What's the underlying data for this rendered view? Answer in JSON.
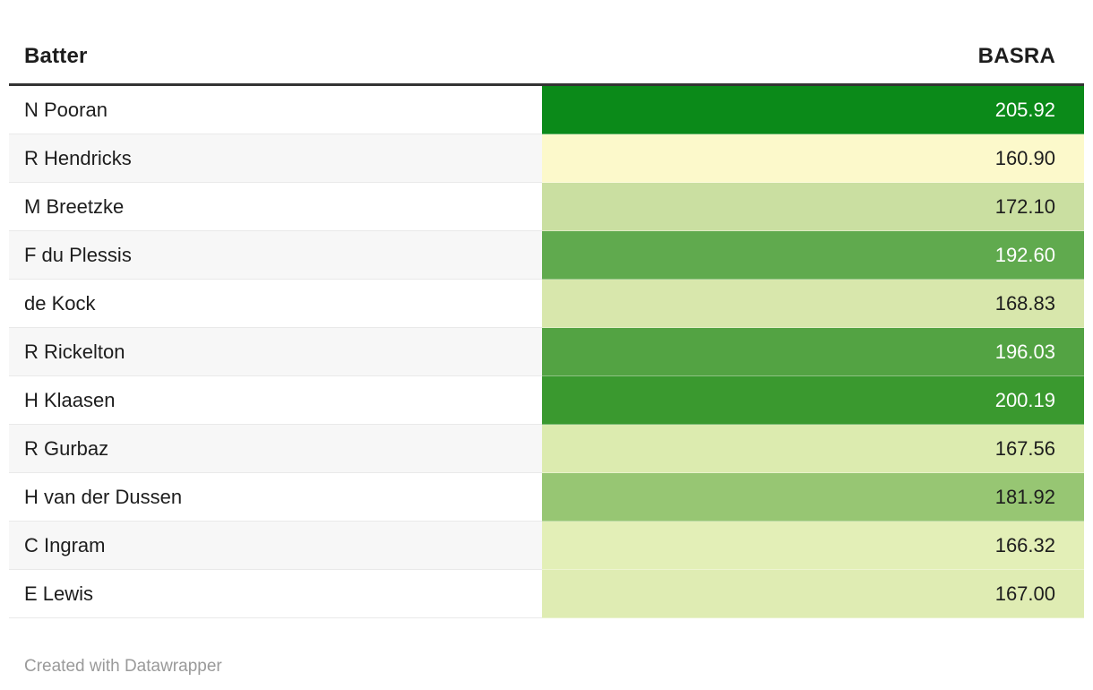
{
  "table": {
    "header": {
      "batter_label": "Batter",
      "basra_label": "BASRA"
    },
    "rows": [
      {
        "batter": "N Pooran",
        "basra": "205.92",
        "cell_color": "#0b8a19",
        "text_color": "#ffffff"
      },
      {
        "batter": "R Hendricks",
        "basra": "160.90",
        "cell_color": "#fcf9cb",
        "text_color": "#1d1d1d"
      },
      {
        "batter": "M Breetzke",
        "basra": "172.10",
        "cell_color": "#cadfa1",
        "text_color": "#1d1d1d"
      },
      {
        "batter": "F du Plessis",
        "basra": "192.60",
        "cell_color": "#60aa4e",
        "text_color": "#ffffff"
      },
      {
        "batter": "de Kock",
        "basra": "168.83",
        "cell_color": "#d8e7ac",
        "text_color": "#1d1d1d"
      },
      {
        "batter": "R Rickelton",
        "basra": "196.03",
        "cell_color": "#53a343",
        "text_color": "#ffffff"
      },
      {
        "batter": "H Klaasen",
        "basra": "200.19",
        "cell_color": "#3a992f",
        "text_color": "#ffffff"
      },
      {
        "batter": "R Gurbaz",
        "basra": "167.56",
        "cell_color": "#dcebaf",
        "text_color": "#1d1d1d"
      },
      {
        "batter": "H van der Dussen",
        "basra": "181.92",
        "cell_color": "#97c673",
        "text_color": "#1d1d1d"
      },
      {
        "batter": "C Ingram",
        "basra": "166.32",
        "cell_color": "#e3efb7",
        "text_color": "#1d1d1d"
      },
      {
        "batter": "E Lewis",
        "basra": "167.00",
        "cell_color": "#dfecb3",
        "text_color": "#1d1d1d"
      }
    ]
  },
  "colors": {
    "row_bg": "#ffffff",
    "row_alt_bg": "#f7f7f7",
    "header_rule": "#333333",
    "row_rule": "#e9e9e9",
    "footer_text": "#9a9a9a",
    "scale_low": "#fcf9cb",
    "scale_high": "#0b8a19"
  },
  "footer": {
    "attribution": "Created with Datawrapper"
  },
  "chart_data": {
    "type": "table",
    "title": "",
    "columns": [
      "Batter",
      "BASRA"
    ],
    "rows": [
      [
        "N Pooran",
        205.92
      ],
      [
        "R Hendricks",
        160.9
      ],
      [
        "M Breetzke",
        172.1
      ],
      [
        "F du Plessis",
        192.6
      ],
      [
        "de Kock",
        168.83
      ],
      [
        "R Rickelton",
        196.03
      ],
      [
        "H Klaasen",
        200.19
      ],
      [
        "R Gurbaz",
        167.56
      ],
      [
        "H van der Dussen",
        181.92
      ],
      [
        "C Ingram",
        166.32
      ],
      [
        "E Lewis",
        167.0
      ]
    ],
    "value_range": [
      160.9,
      205.92
    ],
    "color_encoding": "BASRA value mapped to pale-yellow-to-green heatmap in BASRA column",
    "legend_position": "none",
    "grid": "row rules only"
  }
}
